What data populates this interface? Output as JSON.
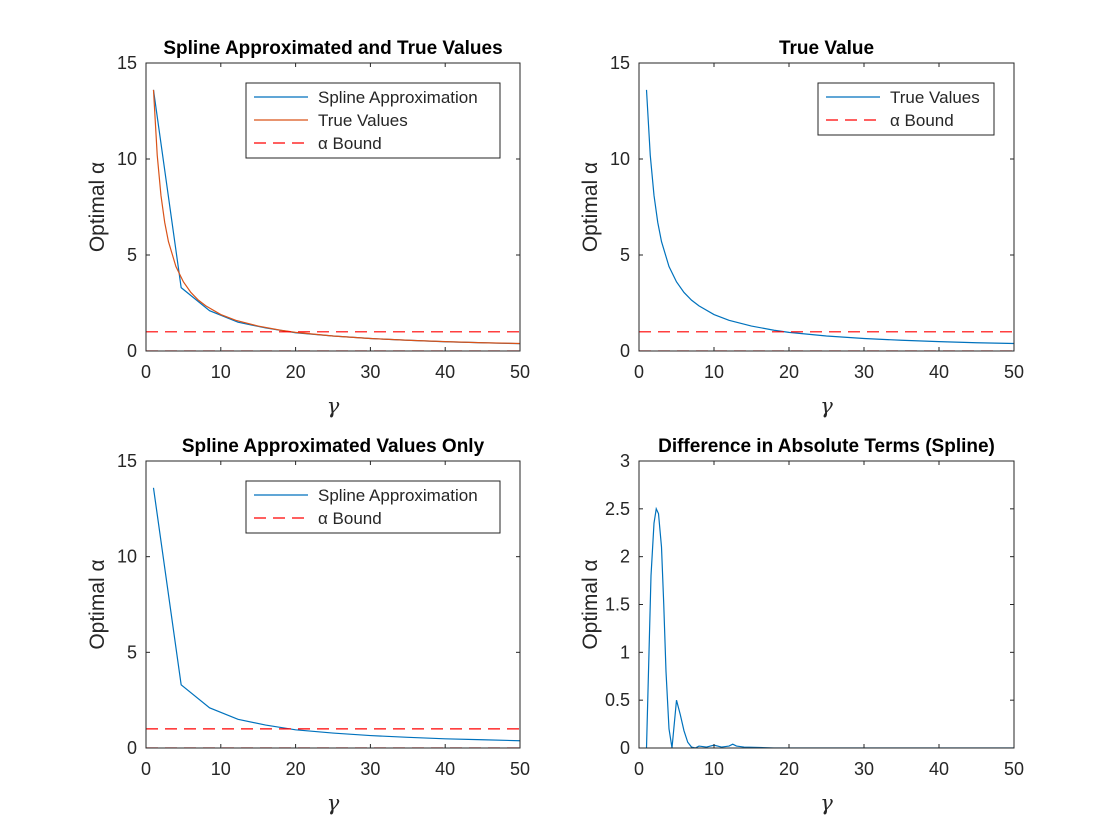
{
  "chart_data": [
    {
      "type": "line",
      "title": "Spline Approximated and True Values",
      "xlabel": "γ",
      "ylabel": "Optimal α",
      "xlim": [
        0,
        50
      ],
      "ylim": [
        0,
        15
      ],
      "xticks": [
        0,
        10,
        20,
        30,
        40,
        50
      ],
      "yticks": [
        0,
        5,
        10,
        15
      ],
      "legend_position": "top-right",
      "series": [
        {
          "name": "Spline Approximation",
          "color": "#0072BD",
          "dash": "solid",
          "x": [
            1,
            4.7,
            8.5,
            12.3,
            16,
            20,
            25,
            30,
            35,
            40,
            45,
            50
          ],
          "y": [
            13.6,
            3.3,
            2.1,
            1.5,
            1.2,
            0.95,
            0.78,
            0.65,
            0.56,
            0.48,
            0.43,
            0.38
          ]
        },
        {
          "name": "True Values",
          "color": "#D95319",
          "dash": "solid",
          "x": [
            1,
            1.5,
            2,
            2.5,
            3,
            4,
            5,
            6,
            7,
            8,
            10,
            12,
            15,
            18,
            20,
            25,
            30,
            35,
            40,
            45,
            50
          ],
          "y": [
            13.6,
            10.2,
            8.1,
            6.7,
            5.7,
            4.4,
            3.6,
            3.05,
            2.65,
            2.35,
            1.9,
            1.6,
            1.3,
            1.08,
            0.97,
            0.78,
            0.65,
            0.56,
            0.49,
            0.43,
            0.39
          ]
        },
        {
          "name": "α Bound",
          "color": "#FF0000",
          "dash": "dashed",
          "x": [
            0,
            50
          ],
          "y": [
            1,
            1
          ]
        },
        {
          "name": "",
          "color": "#FF0000",
          "dash": "dashed",
          "x": [
            0,
            50
          ],
          "y": [
            0,
            0
          ],
          "legend": false
        }
      ]
    },
    {
      "type": "line",
      "title": "True Value",
      "xlabel": "γ",
      "ylabel": "Optimal α",
      "xlim": [
        0,
        50
      ],
      "ylim": [
        0,
        15
      ],
      "xticks": [
        0,
        10,
        20,
        30,
        40,
        50
      ],
      "yticks": [
        0,
        5,
        10,
        15
      ],
      "legend_position": "top-right",
      "series": [
        {
          "name": "True Values",
          "color": "#0072BD",
          "dash": "solid",
          "x": [
            1,
            1.5,
            2,
            2.5,
            3,
            4,
            5,
            6,
            7,
            8,
            10,
            12,
            15,
            18,
            20,
            25,
            30,
            35,
            40,
            45,
            50
          ],
          "y": [
            13.6,
            10.2,
            8.1,
            6.7,
            5.7,
            4.4,
            3.6,
            3.05,
            2.65,
            2.35,
            1.9,
            1.6,
            1.3,
            1.08,
            0.97,
            0.78,
            0.65,
            0.56,
            0.49,
            0.43,
            0.39
          ]
        },
        {
          "name": "α Bound",
          "color": "#FF0000",
          "dash": "dashed",
          "x": [
            0,
            50
          ],
          "y": [
            1,
            1
          ]
        },
        {
          "name": "",
          "color": "#FF0000",
          "dash": "dashed",
          "x": [
            0,
            50
          ],
          "y": [
            0,
            0
          ],
          "legend": false
        }
      ]
    },
    {
      "type": "line",
      "title": "Spline Approximated Values Only",
      "xlabel": "γ",
      "ylabel": "Optimal α",
      "xlim": [
        0,
        50
      ],
      "ylim": [
        0,
        15
      ],
      "xticks": [
        0,
        10,
        20,
        30,
        40,
        50
      ],
      "yticks": [
        0,
        5,
        10,
        15
      ],
      "legend_position": "top-right",
      "series": [
        {
          "name": "Spline Approximation",
          "color": "#0072BD",
          "dash": "solid",
          "x": [
            1,
            4.7,
            8.5,
            12.3,
            16,
            20,
            25,
            30,
            35,
            40,
            45,
            50
          ],
          "y": [
            13.6,
            3.3,
            2.1,
            1.5,
            1.2,
            0.95,
            0.78,
            0.65,
            0.56,
            0.48,
            0.43,
            0.38
          ]
        },
        {
          "name": "α Bound",
          "color": "#FF0000",
          "dash": "dashed",
          "x": [
            0,
            50
          ],
          "y": [
            1,
            1
          ]
        },
        {
          "name": "",
          "color": "#FF0000",
          "dash": "dashed",
          "x": [
            0,
            50
          ],
          "y": [
            0,
            0
          ],
          "legend": false
        }
      ]
    },
    {
      "type": "line",
      "title": "Difference in Absolute Terms (Spline)",
      "xlabel": "γ",
      "ylabel": "Optimal α",
      "xlim": [
        0,
        50
      ],
      "ylim": [
        0,
        3
      ],
      "xticks": [
        0,
        10,
        20,
        30,
        40,
        50
      ],
      "yticks": [
        0,
        0.5,
        1,
        1.5,
        2,
        2.5,
        3
      ],
      "legend_position": "none",
      "series": [
        {
          "name": "",
          "color": "#0072BD",
          "dash": "solid",
          "legend": false,
          "x": [
            1,
            1.3,
            1.6,
            2,
            2.3,
            2.6,
            3,
            3.3,
            3.6,
            4,
            4.4,
            4.7,
            5,
            5.5,
            6,
            6.5,
            7,
            7.5,
            8,
            9,
            10,
            11,
            12,
            12.5,
            13,
            14,
            16,
            18,
            20,
            25,
            30,
            40,
            50
          ],
          "y": [
            0,
            0.9,
            1.8,
            2.35,
            2.5,
            2.45,
            2.1,
            1.5,
            0.8,
            0.2,
            0.0,
            0.25,
            0.5,
            0.35,
            0.18,
            0.06,
            0.01,
            0.0,
            0.02,
            0.01,
            0.03,
            0.01,
            0.02,
            0.04,
            0.02,
            0.01,
            0.005,
            0.0,
            0.0,
            0.0,
            0.0,
            0.0,
            0.0
          ]
        }
      ]
    }
  ]
}
